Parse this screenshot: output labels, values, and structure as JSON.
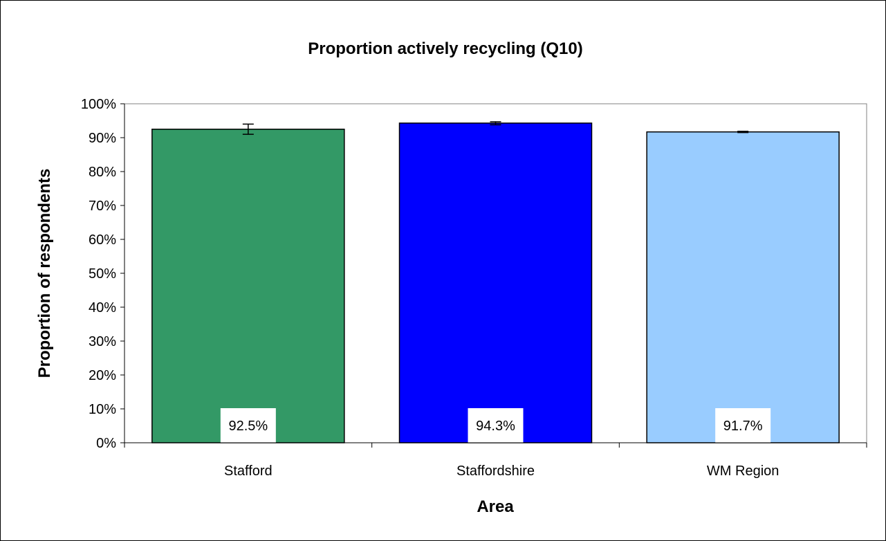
{
  "chart_data": {
    "type": "bar",
    "title": "Proportion actively recycling (Q10)",
    "xlabel": "Area",
    "ylabel": "Proportion of respondents",
    "categories": [
      "Stafford",
      "Staffordshire",
      "WM Region"
    ],
    "values": [
      92.5,
      94.3,
      91.7
    ],
    "value_labels": [
      "92.5%",
      "94.3%",
      "91.7%"
    ],
    "error_bars": [
      {
        "low": 91.0,
        "high": 94.0
      },
      {
        "low": 93.8,
        "high": 94.7
      },
      {
        "low": 91.5,
        "high": 91.9
      }
    ],
    "bar_colors": [
      "#339966",
      "#0000FF",
      "#99CCFF"
    ],
    "plot_background": "#FFFFFF",
    "ylim": [
      0,
      100
    ],
    "yticks": [
      0,
      10,
      20,
      30,
      40,
      50,
      60,
      70,
      80,
      90,
      100
    ],
    "ytick_labels": [
      "0%",
      "10%",
      "20%",
      "30%",
      "40%",
      "50%",
      "60%",
      "70%",
      "80%",
      "90%",
      "100%"
    ],
    "grid": false,
    "legend": "none"
  }
}
